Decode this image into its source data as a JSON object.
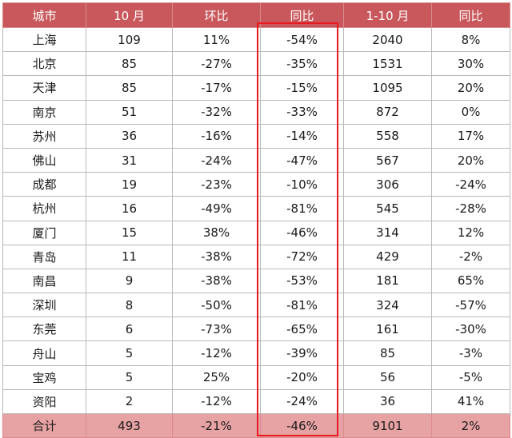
{
  "table": {
    "headers": [
      "城市",
      "10 月",
      "环比",
      "同比",
      "1-10 月",
      "同比"
    ],
    "rows": [
      [
        "上海",
        "109",
        "11%",
        "-54%",
        "2040",
        "8%"
      ],
      [
        "北京",
        "85",
        "-27%",
        "-35%",
        "1531",
        "30%"
      ],
      [
        "天津",
        "85",
        "-17%",
        "-15%",
        "1095",
        "20%"
      ],
      [
        "南京",
        "51",
        "-32%",
        "-33%",
        "872",
        "0%"
      ],
      [
        "苏州",
        "36",
        "-16%",
        "-14%",
        "558",
        "17%"
      ],
      [
        "佛山",
        "31",
        "-24%",
        "-47%",
        "567",
        "20%"
      ],
      [
        "成都",
        "19",
        "-23%",
        "-10%",
        "306",
        "-24%"
      ],
      [
        "杭州",
        "16",
        "-49%",
        "-81%",
        "545",
        "-28%"
      ],
      [
        "厦门",
        "15",
        "38%",
        "-46%",
        "314",
        "12%"
      ],
      [
        "青岛",
        "11",
        "-38%",
        "-72%",
        "429",
        "-2%"
      ],
      [
        "南昌",
        "9",
        "-38%",
        "-53%",
        "181",
        "65%"
      ],
      [
        "深圳",
        "8",
        "-50%",
        "-81%",
        "324",
        "-57%"
      ],
      [
        "东莞",
        "6",
        "-73%",
        "-65%",
        "161",
        "-30%"
      ],
      [
        "舟山",
        "5",
        "-12%",
        "-39%",
        "85",
        "-3%"
      ],
      [
        "宝鸡",
        "5",
        "25%",
        "-20%",
        "56",
        "-5%"
      ],
      [
        "资阳",
        "2",
        "-12%",
        "-24%",
        "36",
        "41%"
      ]
    ],
    "total": [
      "合计",
      "493",
      "-21%",
      "-46%",
      "9101",
      "2%"
    ]
  },
  "colors": {
    "header_bg": "#c8585c",
    "total_bg": "#e7a2a3",
    "highlight_border": "#e8191f"
  }
}
